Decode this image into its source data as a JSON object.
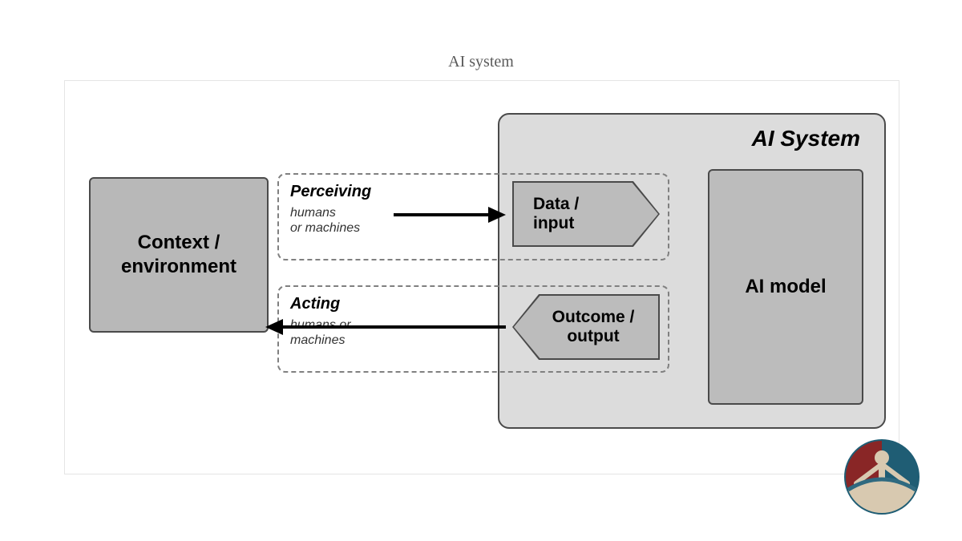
{
  "title": "AI system",
  "diagram": {
    "type": "flowchart",
    "background_color": "#ffffff",
    "frame_border_color": "#e5e5e5",
    "boxes": {
      "context": {
        "label": "Context /\nenvironment",
        "fill": "#b8b8b8",
        "border": "#4a4a4a",
        "font_size": 24,
        "font_weight": "bold"
      },
      "ai_system_container": {
        "label": "AI System",
        "fill": "#dcdcdc",
        "border": "#4a4a4a",
        "title_font_size": 28,
        "title_style": "bold italic",
        "radius": 14
      },
      "ai_model": {
        "label": "AI model",
        "fill": "#bcbcbc",
        "border": "#4a4a4a",
        "font_size": 24,
        "font_weight": "bold"
      },
      "data_input": {
        "label": "Data /\ninput",
        "fill": "#bcbcbc",
        "border": "#4a4a4a",
        "shape": "pentagon-right",
        "font_size": 21
      },
      "outcome_output": {
        "label": "Outcome /\noutput",
        "fill": "#bcbcbc",
        "border": "#4a4a4a",
        "shape": "pentagon-left",
        "font_size": 21
      }
    },
    "groups": {
      "perceiving": {
        "title": "Perceiving",
        "subtitle": "humans\nor machines",
        "border": "#808080",
        "border_style": "dashed",
        "title_font_size": 20,
        "sub_font_size": 16
      },
      "acting": {
        "title": "Acting",
        "subtitle": "humans or\nmachines",
        "border": "#808080",
        "border_style": "dashed",
        "title_font_size": 20,
        "sub_font_size": 16
      }
    },
    "arrows": {
      "perceive_arrow": {
        "from": "context",
        "to": "data_input",
        "direction": "right",
        "color": "#000000",
        "stroke_width": 4
      },
      "act_arrow": {
        "from": "outcome_output",
        "to": "context",
        "direction": "left",
        "color": "#000000",
        "stroke_width": 4
      }
    }
  },
  "logo": {
    "colors": {
      "left": "#892626",
      "right": "#1f5d74",
      "figure": "#d8c9b0",
      "arc": "#2f6a80"
    }
  }
}
